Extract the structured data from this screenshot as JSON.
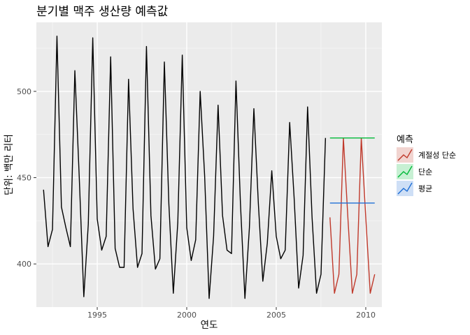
{
  "chart_data": {
    "type": "line",
    "title": "분기별 맥주 생산량 예측값",
    "xlabel": "연도",
    "ylabel": "단위: 백만 리터",
    "xlim": [
      1991.6,
      2010.9
    ],
    "ylim": [
      375,
      540
    ],
    "x_ticks": [
      1995,
      2000,
      2005,
      2010
    ],
    "y_ticks": [
      400,
      450,
      500
    ],
    "grid": true,
    "legend": {
      "title": "예측",
      "position": "right",
      "entries": [
        "계절성 단순",
        "단순",
        "평균"
      ]
    },
    "history": {
      "color": "#000000",
      "start": 1992.0,
      "step": 0.25,
      "values": [
        443,
        410,
        420,
        532,
        433,
        421,
        410,
        512,
        449,
        381,
        423,
        531,
        426,
        408,
        416,
        520,
        409,
        398,
        398,
        507,
        432,
        398,
        406,
        526,
        428,
        397,
        403,
        517,
        435,
        383,
        424,
        521,
        421,
        402,
        414,
        500,
        451,
        380,
        416,
        492,
        428,
        408,
        406,
        506,
        435,
        380,
        421,
        490,
        435,
        390,
        412,
        454,
        416,
        403,
        408,
        482,
        438,
        386,
        405,
        491,
        427,
        383,
        394,
        473
      ]
    },
    "series": [
      {
        "name": "계절성 단순",
        "color": "#c0392b",
        "x": [
          2008.0,
          2008.25,
          2008.5,
          2008.75,
          2009.0,
          2009.25,
          2009.5,
          2009.75,
          2010.0,
          2010.25,
          2010.5
        ],
        "values": [
          427,
          383,
          394,
          473,
          427,
          383,
          394,
          473,
          427,
          383,
          394
        ]
      },
      {
        "name": "단순",
        "color": "#00ba38",
        "x": [
          2008.0,
          2010.5
        ],
        "values": [
          473,
          473
        ]
      },
      {
        "name": "평균",
        "color": "#1f6fd6",
        "x": [
          2008.0,
          2010.5
        ],
        "values": [
          435.3,
          435.3
        ]
      }
    ]
  }
}
